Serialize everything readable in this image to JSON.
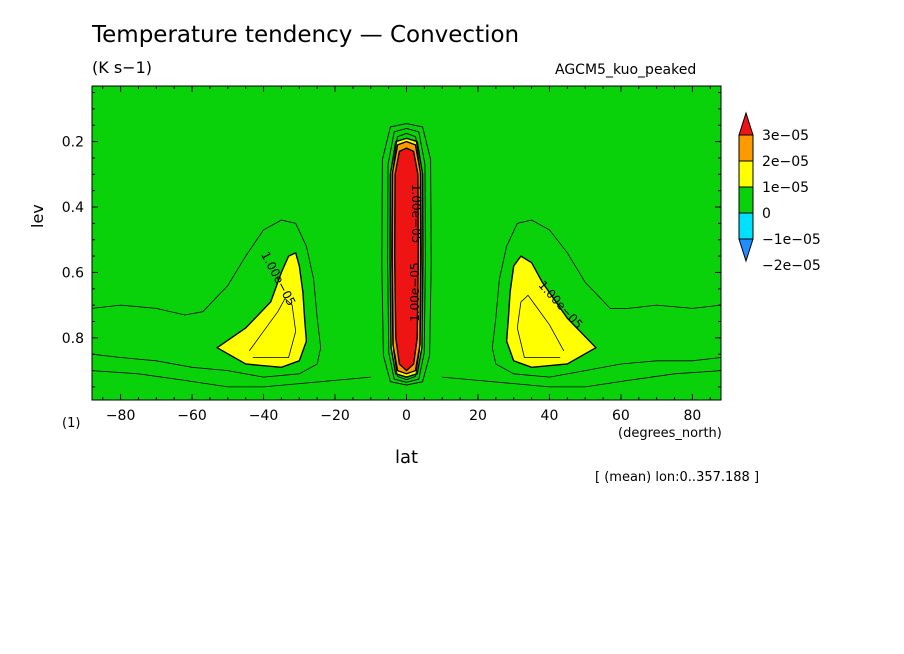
{
  "title": "Temperature tendency — Convection",
  "units": "(K s−1)",
  "run_name": "AGCM5_kuo_peaked",
  "mean_note": "[ (mean) lon:0..357.188 ]",
  "chart_data": {
    "type": "heatmap",
    "title": "Temperature tendency — Convection",
    "subtitle": "(K s−1)",
    "xlabel": "lat",
    "xunit": "(degrees_north)",
    "ylabel": "lev",
    "yunit": "(1)",
    "xlim": [
      -88,
      88
    ],
    "ylim": [
      0.03,
      0.99
    ],
    "y_reversed": true,
    "x_ticks": [
      -80,
      -60,
      -40,
      -20,
      0,
      20,
      40,
      60,
      80
    ],
    "x_tick_labels": [
      "−80",
      "−60",
      "−40",
      "−20",
      "0",
      "20",
      "40",
      "60",
      "80"
    ],
    "y_ticks": [
      0.2,
      0.4,
      0.6,
      0.8
    ],
    "y_tick_labels": [
      "0.2",
      "0.4",
      "0.6",
      "0.8"
    ],
    "colorbar": {
      "levels": [
        -2e-05,
        -1e-05,
        0,
        1e-05,
        2e-05,
        3e-05
      ],
      "labels": [
        "−2e−05",
        "−1e−05",
        "0",
        "1e−05",
        "2e−05",
        "3e−05"
      ],
      "colors": [
        "#1f8fff",
        "#00e1ff",
        "#0ad20a",
        "#ffff00",
        "#ff9900",
        "#ef1414"
      ],
      "placement": "right"
    },
    "background_fill": "#0ad20a",
    "regions": [
      {
        "value_band": "1e-05 to 2e-05",
        "color": "#ffff00",
        "points": [
          [
            -53,
            0.83
          ],
          [
            -45,
            0.77
          ],
          [
            -38,
            0.69
          ],
          [
            -35,
            0.6
          ],
          [
            -33,
            0.55
          ],
          [
            -31,
            0.54
          ],
          [
            -30,
            0.58
          ],
          [
            -29,
            0.66
          ],
          [
            -28.5,
            0.74
          ],
          [
            -28,
            0.81
          ],
          [
            -30,
            0.87
          ],
          [
            -35,
            0.89
          ],
          [
            -45,
            0.88
          ]
        ]
      },
      {
        "value_band": "1e-05 to 2e-05",
        "color": "#ffff00",
        "points": [
          [
            53,
            0.83
          ],
          [
            45,
            0.74
          ],
          [
            38,
            0.63
          ],
          [
            35,
            0.57
          ],
          [
            32,
            0.55
          ],
          [
            30,
            0.58
          ],
          [
            29,
            0.66
          ],
          [
            28.5,
            0.74
          ],
          [
            28,
            0.81
          ],
          [
            30,
            0.87
          ],
          [
            35,
            0.89
          ],
          [
            45,
            0.88
          ]
        ]
      },
      {
        "value_band": "1e-05 to 2e-05",
        "color": "#ffff00",
        "points": [
          [
            -4.5,
            0.3
          ],
          [
            -4.6,
            0.55
          ],
          [
            -4.3,
            0.83
          ],
          [
            -3,
            0.91
          ],
          [
            0,
            0.92
          ],
          [
            3,
            0.91
          ],
          [
            4.3,
            0.83
          ],
          [
            4.6,
            0.55
          ],
          [
            4.5,
            0.3
          ],
          [
            3,
            0.2
          ],
          [
            0,
            0.19
          ],
          [
            -3,
            0.2
          ]
        ]
      },
      {
        "value_band": "2e-05 to 3e-05",
        "color": "#ff9900",
        "points": [
          [
            -4,
            0.3
          ],
          [
            -4.1,
            0.55
          ],
          [
            -3.8,
            0.82
          ],
          [
            -2.5,
            0.9
          ],
          [
            0,
            0.91
          ],
          [
            2.5,
            0.9
          ],
          [
            3.8,
            0.82
          ],
          [
            4.1,
            0.55
          ],
          [
            4,
            0.3
          ],
          [
            2.5,
            0.21
          ],
          [
            0,
            0.2
          ],
          [
            -2.5,
            0.21
          ]
        ]
      },
      {
        "value_band": "> 3e-05",
        "color": "#ef1414",
        "points": [
          [
            -3.2,
            0.3
          ],
          [
            -3.3,
            0.55
          ],
          [
            -3,
            0.8
          ],
          [
            -2,
            0.88
          ],
          [
            0,
            0.9
          ],
          [
            2,
            0.88
          ],
          [
            3,
            0.8
          ],
          [
            3.3,
            0.55
          ],
          [
            3.2,
            0.3
          ],
          [
            2,
            0.23
          ],
          [
            0,
            0.22
          ],
          [
            -2,
            0.23
          ]
        ]
      }
    ],
    "contours": [
      {
        "style": "thin",
        "points": [
          [
            -88,
            0.71
          ],
          [
            -80,
            0.7
          ],
          [
            -70,
            0.71
          ],
          [
            -62,
            0.73
          ],
          [
            -57,
            0.72
          ],
          [
            -50,
            0.64
          ],
          [
            -45,
            0.55
          ],
          [
            -40,
            0.47
          ],
          [
            -35,
            0.44
          ],
          [
            -31,
            0.45
          ],
          [
            -28,
            0.52
          ],
          [
            -26,
            0.62
          ],
          [
            -25,
            0.74
          ],
          [
            -24,
            0.83
          ],
          [
            -25,
            0.88
          ],
          [
            -30,
            0.91
          ],
          [
            -40,
            0.92
          ],
          [
            -50,
            0.9
          ],
          [
            -60,
            0.89
          ],
          [
            -70,
            0.87
          ],
          [
            -80,
            0.86
          ],
          [
            -88,
            0.85
          ]
        ]
      },
      {
        "style": "thin",
        "points": [
          [
            88,
            0.7
          ],
          [
            80,
            0.71
          ],
          [
            70,
            0.7
          ],
          [
            62,
            0.71
          ],
          [
            57,
            0.71
          ],
          [
            50,
            0.63
          ],
          [
            45,
            0.54
          ],
          [
            40,
            0.47
          ],
          [
            35,
            0.44
          ],
          [
            31,
            0.45
          ],
          [
            28,
            0.52
          ],
          [
            26,
            0.62
          ],
          [
            25,
            0.74
          ],
          [
            24,
            0.83
          ],
          [
            25,
            0.88
          ],
          [
            30,
            0.91
          ],
          [
            40,
            0.92
          ],
          [
            50,
            0.9
          ],
          [
            60,
            0.88
          ],
          [
            70,
            0.87
          ],
          [
            80,
            0.87
          ],
          [
            88,
            0.86
          ]
        ]
      },
      {
        "style": "thin",
        "points": [
          [
            -88,
            0.9
          ],
          [
            -75,
            0.91
          ],
          [
            -62,
            0.93
          ],
          [
            -50,
            0.95
          ],
          [
            -40,
            0.95
          ],
          [
            -30,
            0.94
          ],
          [
            -20,
            0.93
          ],
          [
            -10,
            0.92
          ]
        ]
      },
      {
        "style": "thin",
        "points": [
          [
            10,
            0.92
          ],
          [
            20,
            0.93
          ],
          [
            30,
            0.94
          ],
          [
            40,
            0.95
          ],
          [
            50,
            0.95
          ],
          [
            62,
            0.93
          ],
          [
            75,
            0.91
          ],
          [
            88,
            0.9
          ]
        ]
      },
      {
        "style": "thin",
        "points": [
          [
            -44,
            0.84
          ],
          [
            -40,
            0.78
          ],
          [
            -36,
            0.72
          ],
          [
            -34,
            0.68
          ],
          [
            -32,
            0.7
          ],
          [
            -31,
            0.78
          ],
          [
            -33,
            0.86
          ],
          [
            -38,
            0.86
          ],
          [
            -43,
            0.86
          ]
        ]
      },
      {
        "style": "thin",
        "points": [
          [
            44,
            0.84
          ],
          [
            40,
            0.76
          ],
          [
            36,
            0.7
          ],
          [
            34,
            0.67
          ],
          [
            32,
            0.69
          ],
          [
            31,
            0.77
          ],
          [
            33,
            0.86
          ],
          [
            38,
            0.86
          ],
          [
            43,
            0.86
          ]
        ]
      }
    ],
    "contour_labels": [
      {
        "text": "1.00e−05",
        "x": -36,
        "y": 0.62,
        "angle": 62
      },
      {
        "text": "1.00e−05",
        "x": 43,
        "y": 0.7,
        "angle": 48
      },
      {
        "text": "1.00e−05",
        "x": 2.5,
        "y": 0.42,
        "angle": 90
      },
      {
        "text": "1.00e−05",
        "x": 2.5,
        "y": 0.66,
        "angle": -90
      }
    ]
  }
}
